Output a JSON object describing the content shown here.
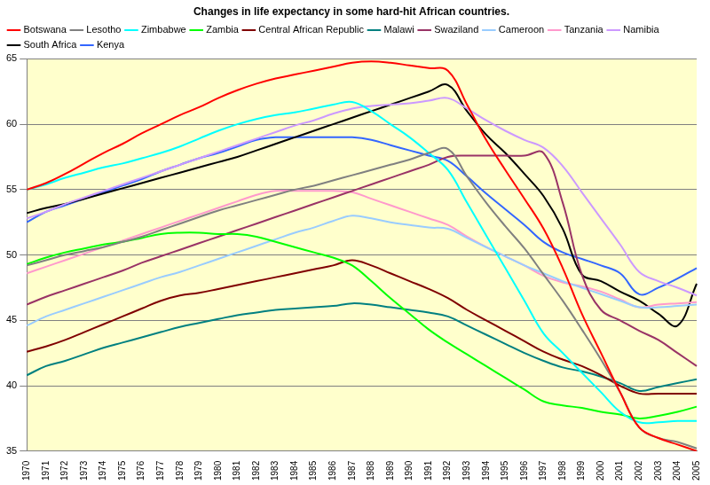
{
  "chart_data": {
    "type": "line",
    "title": "Changes in life expectancy in some hard-hit African countries.",
    "categories": [
      "1970",
      "1971",
      "1972",
      "1973",
      "1974",
      "1975",
      "1976",
      "1977",
      "1978",
      "1979",
      "1980",
      "1981",
      "1982",
      "1983",
      "1984",
      "1985",
      "1986",
      "1987",
      "1988",
      "1989",
      "1990",
      "1991",
      "1992",
      "1993",
      "1994",
      "1995",
      "1996",
      "1997",
      "1998",
      "1999",
      "2000",
      "2001",
      "2002",
      "2003",
      "2004",
      "2005"
    ],
    "ylim": [
      35,
      65
    ],
    "yticks": [
      35,
      40,
      45,
      50,
      55,
      60,
      65
    ],
    "grid": true,
    "legend": "top",
    "series": [
      {
        "name": "Botswana",
        "color": "#ff0000",
        "values": [
          55,
          55.5,
          56.2,
          57,
          57.8,
          58.5,
          59.3,
          60,
          60.7,
          61.3,
          62,
          62.6,
          63.1,
          63.5,
          63.8,
          64.1,
          64.4,
          64.7,
          64.8,
          64.7,
          64.5,
          64.3,
          64.1,
          61.5,
          58.8,
          56.5,
          54.3,
          52,
          49,
          45.5,
          42.5,
          39.5,
          36.8,
          36,
          35.5,
          35
        ]
      },
      {
        "name": "Lesotho",
        "color": "#808080",
        "values": [
          49.2,
          49.6,
          50,
          50.3,
          50.6,
          51,
          51.4,
          51.9,
          52.4,
          52.9,
          53.4,
          53.8,
          54.2,
          54.6,
          55,
          55.3,
          55.7,
          56.1,
          56.5,
          56.9,
          57.3,
          57.8,
          58.1,
          56,
          54,
          52.2,
          50.5,
          48.5,
          46.5,
          44.3,
          42,
          39.5,
          36.8,
          36,
          35.7,
          35.2
        ]
      },
      {
        "name": "Zimbabwe",
        "color": "#00ffff",
        "values": [
          55,
          55.4,
          55.9,
          56.3,
          56.7,
          57,
          57.4,
          57.8,
          58.3,
          58.9,
          59.5,
          60,
          60.4,
          60.7,
          60.9,
          61.2,
          61.5,
          61.7,
          61,
          60,
          59,
          57.8,
          56.5,
          54,
          51.5,
          49,
          46.5,
          44,
          42.5,
          41,
          39.5,
          38,
          37.2,
          37.2,
          37.3,
          37.3
        ]
      },
      {
        "name": "Zambia",
        "color": "#00ff00",
        "values": [
          49.3,
          49.8,
          50.2,
          50.5,
          50.8,
          51,
          51.3,
          51.6,
          51.7,
          51.7,
          51.6,
          51.6,
          51.4,
          51,
          50.6,
          50.2,
          49.8,
          49.2,
          48,
          46.7,
          45.5,
          44.3,
          43.3,
          42.4,
          41.5,
          40.6,
          39.7,
          38.8,
          38.5,
          38.3,
          38,
          37.8,
          37.5,
          37.7,
          38,
          38.4
        ]
      },
      {
        "name": "Central African Republic",
        "color": "#800000",
        "values": [
          42.6,
          43,
          43.5,
          44.1,
          44.7,
          45.3,
          45.9,
          46.5,
          46.9,
          47.1,
          47.4,
          47.7,
          48,
          48.3,
          48.6,
          48.9,
          49.2,
          49.6,
          49.2,
          48.6,
          48,
          47.4,
          46.7,
          45.8,
          45,
          44.2,
          43.4,
          42.6,
          42,
          41.5,
          40.8,
          40,
          39.4,
          39.4,
          39.4,
          39.4
        ]
      },
      {
        "name": "Malawi",
        "color": "#008080",
        "values": [
          40.8,
          41.5,
          41.9,
          42.4,
          42.9,
          43.3,
          43.7,
          44.1,
          44.5,
          44.8,
          45.1,
          45.4,
          45.6,
          45.8,
          45.9,
          46,
          46.1,
          46.3,
          46.2,
          46,
          45.8,
          45.6,
          45.3,
          44.6,
          43.9,
          43.2,
          42.5,
          41.9,
          41.4,
          41.1,
          40.7,
          40.2,
          39.6,
          39.9,
          40.2,
          40.5
        ]
      },
      {
        "name": "Swaziland",
        "color": "#993366",
        "values": [
          46.2,
          46.8,
          47.3,
          47.8,
          48.3,
          48.8,
          49.4,
          49.9,
          50.4,
          50.9,
          51.4,
          51.9,
          52.4,
          52.9,
          53.4,
          53.9,
          54.4,
          54.9,
          55.4,
          55.9,
          56.4,
          56.9,
          57.5,
          57.6,
          57.6,
          57.6,
          57.6,
          57.8,
          54,
          48.5,
          45.8,
          45,
          44.2,
          43.5,
          42.5,
          41.5
        ]
      },
      {
        "name": "Cameroon",
        "color": "#99ccff",
        "values": [
          44.6,
          45.3,
          45.8,
          46.3,
          46.8,
          47.3,
          47.8,
          48.3,
          48.7,
          49.2,
          49.7,
          50.2,
          50.7,
          51.2,
          51.7,
          52.1,
          52.6,
          53,
          52.8,
          52.5,
          52.3,
          52.1,
          52,
          51.3,
          50.6,
          49.9,
          49.2,
          48.6,
          48,
          47.5,
          47,
          46.5,
          46,
          46,
          46.1,
          46.2
        ]
      },
      {
        "name": "Tanzania",
        "color": "#ff99cc",
        "values": [
          48.6,
          49.1,
          49.6,
          50.1,
          50.6,
          51.1,
          51.6,
          52.1,
          52.6,
          53.1,
          53.6,
          54.1,
          54.6,
          54.9,
          54.9,
          54.9,
          54.9,
          54.8,
          54.3,
          53.8,
          53.3,
          52.8,
          52.3,
          51.4,
          50.6,
          49.9,
          49.2,
          48.4,
          47.9,
          47.6,
          47.2,
          46.6,
          46,
          46.2,
          46.3,
          46.4
        ]
      },
      {
        "name": "Namibia",
        "color": "#cc99ff",
        "values": [
          52.8,
          53.3,
          53.9,
          54.4,
          54.9,
          55.4,
          55.9,
          56.4,
          56.9,
          57.4,
          57.9,
          58.4,
          58.9,
          59.4,
          59.9,
          60.3,
          60.8,
          61.2,
          61.4,
          61.5,
          61.6,
          61.8,
          62,
          61.2,
          60.3,
          59.5,
          58.8,
          58.2,
          56.8,
          54.8,
          52.8,
          50.8,
          48.7,
          48,
          47.5,
          46.9
        ]
      },
      {
        "name": "South Africa",
        "color": "#000000",
        "values": [
          53.2,
          53.6,
          53.9,
          54.3,
          54.7,
          55.1,
          55.5,
          55.9,
          56.3,
          56.7,
          57.1,
          57.5,
          58,
          58.5,
          59,
          59.5,
          60,
          60.5,
          61,
          61.5,
          62,
          62.5,
          63,
          61,
          59.2,
          57.8,
          56.2,
          54.5,
          52,
          48.5,
          48,
          47.2,
          46.5,
          45.5,
          44.6,
          47.8
        ]
      },
      {
        "name": "Kenya",
        "color": "#3366ff",
        "values": [
          52.5,
          53.3,
          53.8,
          54.3,
          54.8,
          55.3,
          55.8,
          56.4,
          56.9,
          57.4,
          57.8,
          58.3,
          58.8,
          59,
          59,
          59,
          59,
          59,
          58.8,
          58.4,
          58,
          57.6,
          57.2,
          56,
          54.7,
          53.5,
          52.3,
          51,
          50.2,
          49.7,
          49.2,
          48.6,
          47,
          47.5,
          48.2,
          49
        ]
      }
    ]
  }
}
